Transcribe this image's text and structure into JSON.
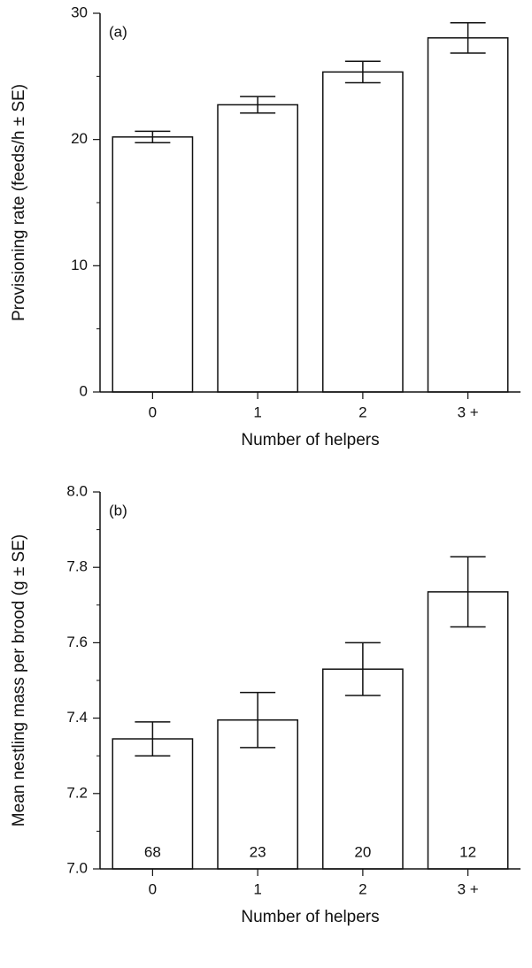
{
  "chart_data": [
    {
      "type": "bar",
      "panel_label": "(a)",
      "x_label": "Number of helpers",
      "y_label": "Provisioning rate (feeds/h ± SE)",
      "categories": [
        "0",
        "1",
        "2",
        "3 +"
      ],
      "values": [
        20.2,
        22.75,
        25.35,
        28.05
      ],
      "errors": [
        0.45,
        0.65,
        0.85,
        1.2
      ],
      "color": "#ffffff",
      "ylim": [
        0,
        30
      ],
      "yticks": [
        0,
        10,
        20,
        30
      ]
    },
    {
      "type": "bar",
      "panel_label": "(b)",
      "x_label": "Number of helpers",
      "y_label": "Mean nestling mass per brood (g ± SE)",
      "categories": [
        "0",
        "1",
        "2",
        "3 +"
      ],
      "values": [
        7.345,
        7.395,
        7.53,
        7.735
      ],
      "errors": [
        0.045,
        0.073,
        0.07,
        0.093
      ],
      "bar_annotations": [
        "68",
        "23",
        "20",
        "12"
      ],
      "color": "#ffffff",
      "ylim": [
        7.0,
        8.0
      ],
      "yticks": [
        {
          "value": 7.0,
          "label": "7.0"
        },
        7.2,
        7.4,
        7.6,
        7.8,
        {
          "value": 8.0,
          "label": "8.0"
        }
      ]
    }
  ]
}
